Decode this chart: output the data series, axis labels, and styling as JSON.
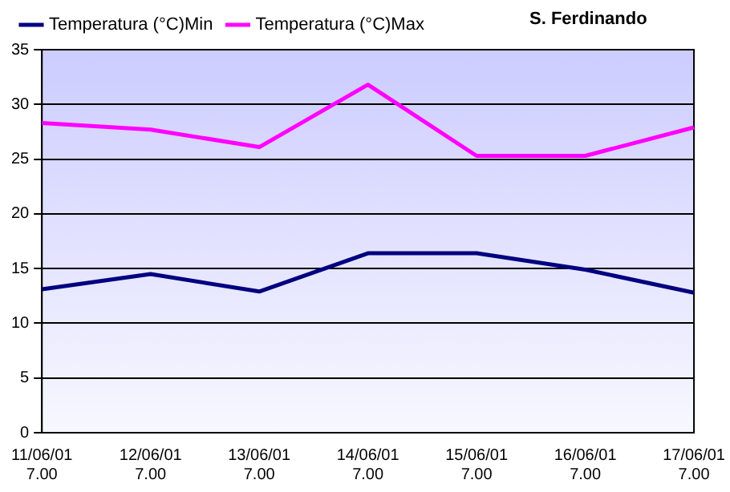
{
  "chart_data": {
    "type": "line",
    "title": "S. Ferdinando",
    "categories": [
      "11/06/01\n7.00",
      "12/06/01\n7.00",
      "13/06/01\n7.00",
      "14/06/01\n7.00",
      "15/06/01\n7.00",
      "16/06/01\n7.00",
      "17/06/01\n7.00"
    ],
    "series": [
      {
        "name": "Temperatura (°C)Min",
        "color": "#000080",
        "values": [
          13.1,
          14.5,
          12.9,
          16.4,
          16.4,
          14.9,
          12.8
        ]
      },
      {
        "name": "Temperatura (°C)Max",
        "color": "#ff00ff",
        "values": [
          28.3,
          27.7,
          26.1,
          31.8,
          25.3,
          25.3,
          27.9
        ]
      }
    ],
    "ylim": [
      0,
      35
    ],
    "yticks": [
      0,
      5,
      10,
      15,
      20,
      25,
      30,
      35
    ],
    "grid": "y",
    "legend": "top left",
    "marker": "none",
    "line_style": "solid"
  }
}
